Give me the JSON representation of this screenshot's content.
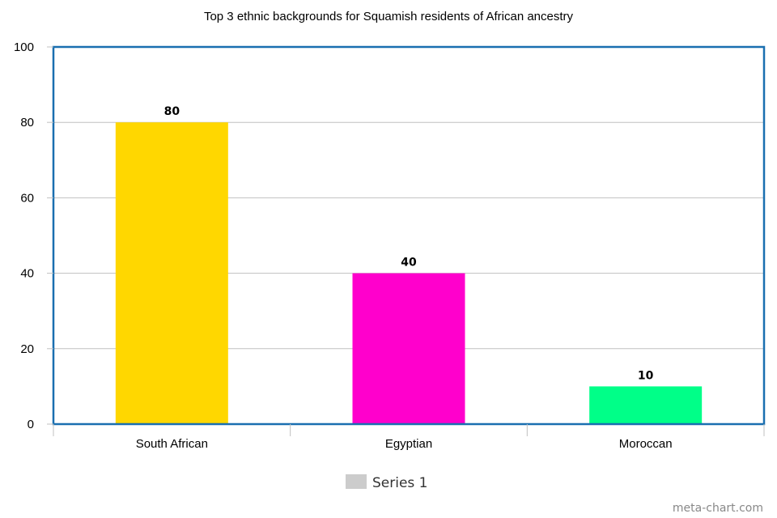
{
  "chart_data": {
    "type": "bar",
    "title": "Top 3 ethnic backgrounds for Squamish residents of African ancestry",
    "categories": [
      "South African",
      "Egyptian",
      "Moroccan"
    ],
    "series": [
      {
        "name": "Series 1",
        "values": [
          80,
          40,
          10
        ],
        "colors": [
          "#ffd700",
          "#ff00cc",
          "#00ff88"
        ]
      }
    ],
    "data_labels": [
      "80",
      "40",
      "10"
    ],
    "xlabel": "",
    "ylabel": "",
    "ylim": [
      0,
      100
    ],
    "y_ticks": [
      "0",
      "20",
      "40",
      "60",
      "80",
      "100"
    ],
    "grid": true,
    "legend_position": "bottom-center",
    "legend_color": "#cccccc",
    "frame_color": "#1a6fb0",
    "grid_color": "#c0c0c0"
  },
  "credit": "meta-chart.com"
}
